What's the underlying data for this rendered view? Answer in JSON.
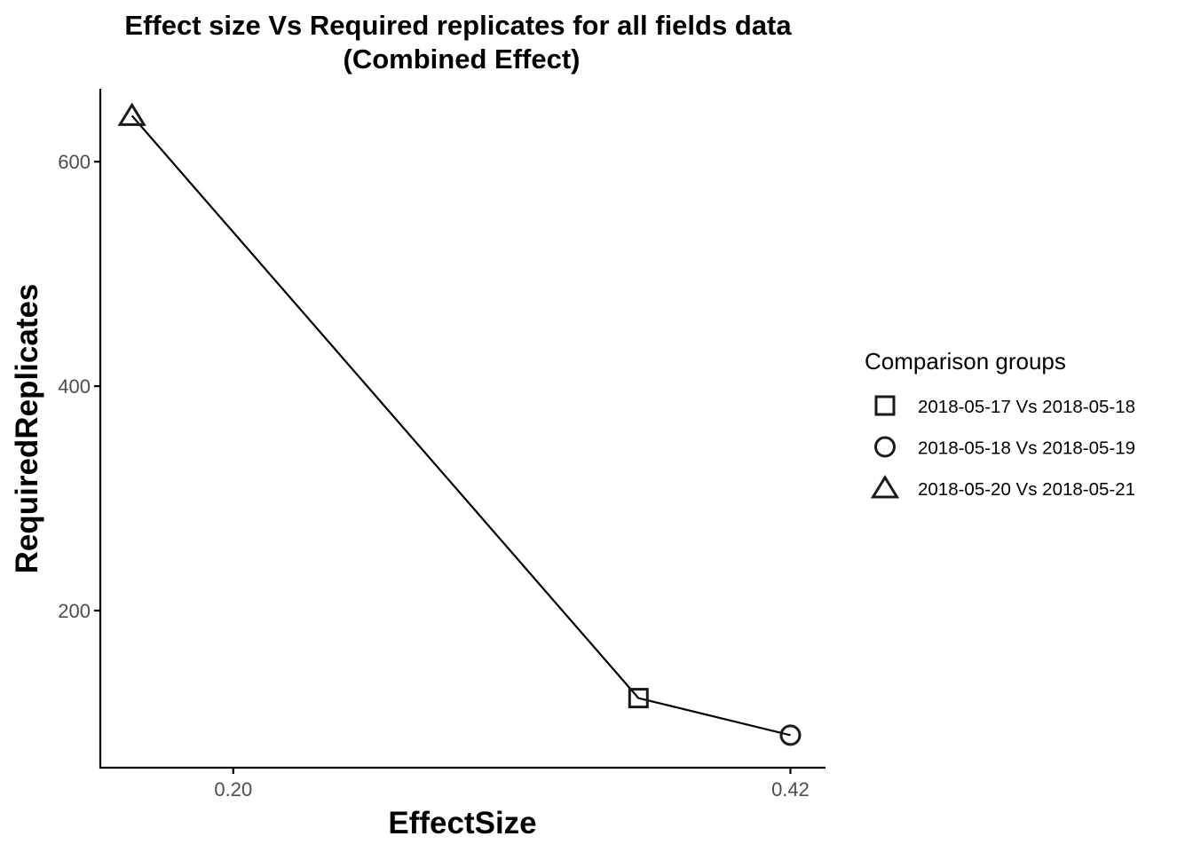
{
  "chart_data": {
    "type": "line",
    "title": "Effect size Vs Required replicates for all fields data",
    "subtitle": "(Combined Effect)",
    "xlabel": "EffectSize",
    "ylabel": "RequiredReplicates",
    "x_ticks": [
      {
        "value": 0.2,
        "label": "0.20"
      },
      {
        "value": 0.42,
        "label": "0.42"
      }
    ],
    "y_ticks": [
      {
        "value": 200,
        "label": "200"
      },
      {
        "value": 400,
        "label": "400"
      },
      {
        "value": 600,
        "label": "600"
      }
    ],
    "xlim": [
      0.1475,
      0.4335
    ],
    "ylim": [
      60,
      665
    ],
    "grid": false,
    "legend": {
      "title": "Comparison groups",
      "position": "right"
    },
    "series": [
      {
        "name": "2018-05-17 Vs 2018-05-18",
        "shape": "square",
        "x": 0.36,
        "y": 122
      },
      {
        "name": "2018-05-18 Vs 2018-05-19",
        "shape": "circle",
        "x": 0.42,
        "y": 89
      },
      {
        "name": "2018-05-20 Vs 2018-05-21",
        "shape": "triangle",
        "x": 0.16,
        "y": 641
      }
    ],
    "line_order": [
      2,
      0,
      1
    ],
    "colors": {
      "line": "#000000",
      "marker": "#1a1a1a",
      "axis": "#000000",
      "tick_label": "#4d4d4d"
    }
  }
}
